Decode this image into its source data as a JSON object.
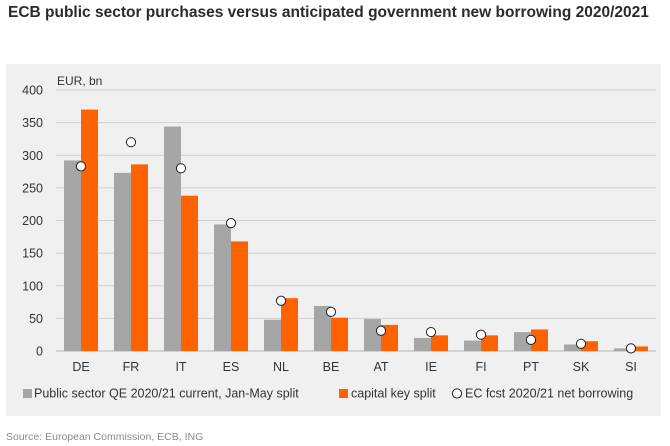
{
  "title": "ECB public sector purchases versus anticipated government new borrowing 2020/2021",
  "source": "Source: European Commission, ECB, ING",
  "colors": {
    "qe": "#a6a6a6",
    "capital": "#ff6200",
    "marker": "#ffffff",
    "grid": "#d0d0d0",
    "background": "#f0f0f0"
  },
  "chart_data": {
    "type": "bar",
    "ylabel": "EUR, bn",
    "ylim": [
      0,
      400
    ],
    "yticks": [
      0,
      50,
      100,
      150,
      200,
      250,
      300,
      350,
      400
    ],
    "grid": true,
    "legend_position": "bottom",
    "categories": [
      "DE",
      "FR",
      "IT",
      "ES",
      "NL",
      "BE",
      "AT",
      "IE",
      "FI",
      "PT",
      "SK",
      "SI"
    ],
    "series": [
      {
        "name": "Public sector QE 2020/21 current, Jan-May split",
        "kind": "bar",
        "color": "#a6a6a6",
        "values": [
          292,
          273,
          344,
          194,
          48,
          69,
          49,
          20,
          16,
          29,
          10,
          4
        ]
      },
      {
        "name": "capital key split",
        "kind": "bar",
        "color": "#ff6200",
        "values": [
          370,
          286,
          238,
          168,
          81,
          51,
          40,
          24,
          24,
          33,
          15,
          7
        ]
      },
      {
        "name": "EC fcst 2020/21 net borrowing",
        "kind": "scatter",
        "marker": "circle",
        "values": [
          283,
          320,
          280,
          196,
          77,
          60,
          31,
          29,
          25,
          17,
          11,
          4
        ]
      }
    ]
  }
}
